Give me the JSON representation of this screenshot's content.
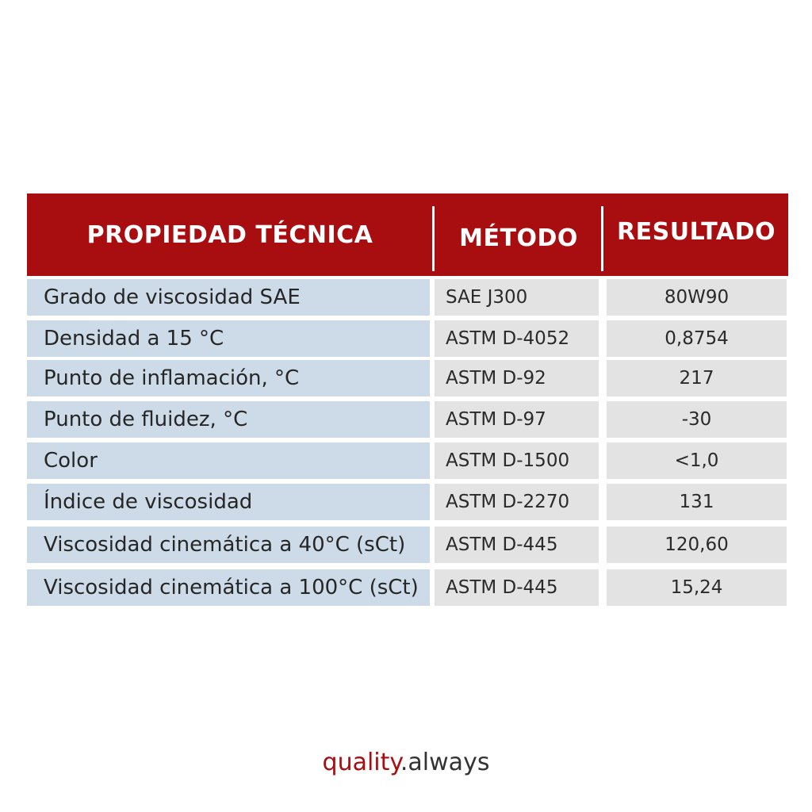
{
  "table": {
    "headers": {
      "property": "PROPIEDAD TÉCNICA",
      "method": "MÉTODO",
      "result": "RESULTADO"
    },
    "rows": [
      {
        "property": "Grado de viscosidad SAE",
        "method": "SAE J300",
        "result": "80W90"
      },
      {
        "property": "Densidad a 15 °C",
        "method": "ASTM D-4052",
        "result": "0,8754"
      },
      {
        "property": "Punto de inflamación, °C",
        "method": "ASTM D-92",
        "result": "217"
      },
      {
        "property": "Punto de fluidez, °C",
        "method": "ASTM D-97",
        "result": "-30"
      },
      {
        "property": "Color",
        "method": "ASTM D-1500",
        "result": "<1,0"
      },
      {
        "property": "Índice de viscosidad",
        "method": "ASTM D-2270",
        "result": "131"
      },
      {
        "property": "Viscosidad cinemática a 40°C (sCt)",
        "method": "ASTM D-445",
        "result": "120,60"
      },
      {
        "property": "Viscosidad cinemática a 100°C (sCt)",
        "method": "ASTM D-445",
        "result": "15,24"
      }
    ]
  },
  "footer": {
    "accent": "quality",
    "rest": ".always"
  },
  "colors": {
    "header_bg": "#a80d0f",
    "property_cell_bg": "#ccdbe7",
    "value_cell_bg": "#e3e3e3"
  }
}
